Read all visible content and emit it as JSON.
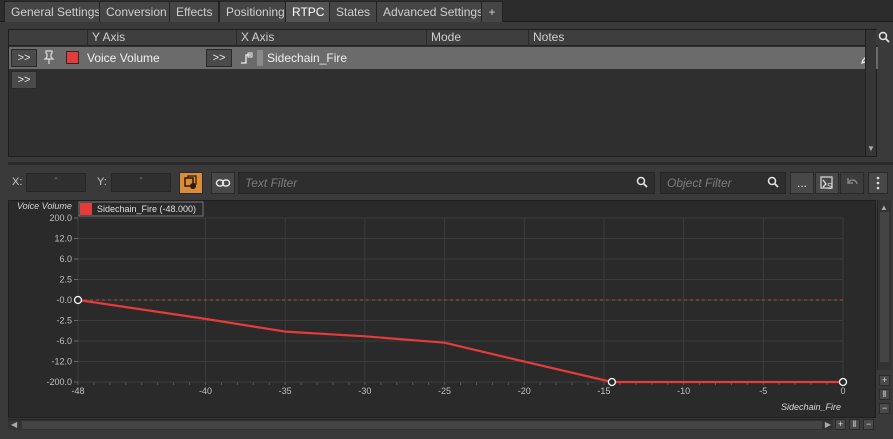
{
  "tabs": [
    {
      "label": "General Settings",
      "active": false
    },
    {
      "label": "Conversion",
      "active": false
    },
    {
      "label": "Effects",
      "active": false
    },
    {
      "label": "Positioning",
      "active": false
    },
    {
      "label": "RTPC",
      "active": true
    },
    {
      "label": "States",
      "active": false
    },
    {
      "label": "Advanced Settings",
      "active": false
    },
    {
      "label": "+",
      "active": false
    }
  ],
  "grid": {
    "headers": {
      "y_axis": "Y Axis",
      "x_axis": "X Axis",
      "mode": "Mode",
      "notes": "Notes"
    },
    "row": {
      "expand_label": ">>",
      "y_axis_value": "Voice Volume",
      "y_axis_color": "#e53b3b",
      "x_expand_label": ">>",
      "x_axis_value": "Sidechain_Fire"
    },
    "add_expand_label": ">>"
  },
  "toolbar": {
    "x_label": "X:",
    "x_value": "-",
    "y_label": "Y:",
    "y_value": "-",
    "text_filter_placeholder": "Text Filter",
    "object_filter_placeholder": "Object Filter",
    "more_label": "..."
  },
  "graph": {
    "y_axis_title": "Voice Volume",
    "x_axis_title": "Sidechain_Fire",
    "legend": "Sidechain_Fire (-48.000)",
    "curve_color": "#e53b3b",
    "y_ticks": [
      "200.0",
      "12.0",
      "6.0",
      "2.5",
      "-0.0",
      "-2.5",
      "-6.0",
      "-12.0",
      "-200.0"
    ],
    "x_ticks": [
      "-48",
      "-40",
      "-35",
      "-30",
      "-25",
      "-20",
      "-15",
      "-10",
      "-5",
      "0"
    ]
  },
  "chart_data": {
    "type": "line",
    "title": "",
    "xlabel": "Sidechain_Fire",
    "ylabel": "Voice Volume",
    "xlim": [
      -48,
      0
    ],
    "ylim": [
      -200,
      200
    ],
    "series": [
      {
        "name": "Sidechain_Fire (-48.000)",
        "x": [
          -48,
          -40,
          -35,
          -30,
          -25,
          -20,
          -14.5,
          0
        ],
        "y": [
          0,
          -2.3,
          -4.4,
          -5.2,
          -6.5,
          -12.5,
          -200,
          -200
        ]
      }
    ],
    "control_points": [
      {
        "x": -48,
        "y": 0
      },
      {
        "x": -14.5,
        "y": -200
      },
      {
        "x": 0,
        "y": -200
      }
    ]
  }
}
